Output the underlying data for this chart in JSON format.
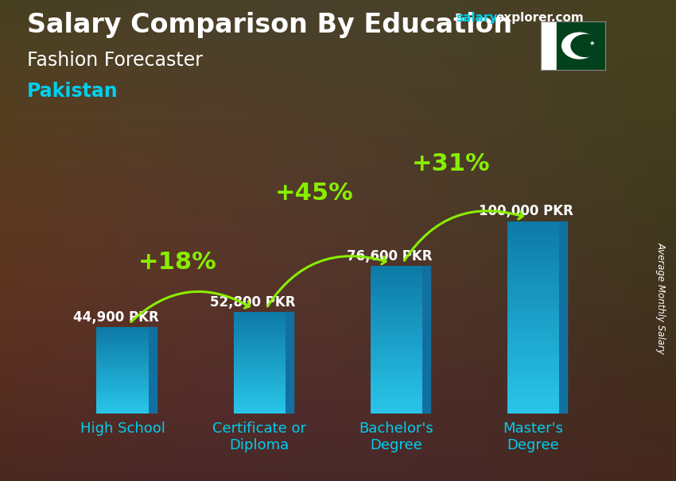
{
  "title_main": "Salary Comparison By Education",
  "title_sub": "Fashion Forecaster",
  "title_country": "Pakistan",
  "ylabel": "Average Monthly Salary",
  "categories": [
    "High School",
    "Certificate or\nDiploma",
    "Bachelor's\nDegree",
    "Master's\nDegree"
  ],
  "values": [
    44900,
    52800,
    76600,
    100000
  ],
  "labels": [
    "44,900 PKR",
    "52,800 PKR",
    "76,600 PKR",
    "100,000 PKR"
  ],
  "pct_changes": [
    "+18%",
    "+45%",
    "+31%"
  ],
  "bar_color_main": "#29c4e8",
  "bar_color_side": "#1580a8",
  "bar_color_top": "#55ddf5",
  "bg_color": "#6b5040",
  "text_color_white": "#ffffff",
  "text_color_cyan": "#00cfef",
  "text_color_green": "#88ee00",
  "brand_color_salary": "#00cfef",
  "brand_color_rest": "#ffffff",
  "title_fontsize": 24,
  "sub_fontsize": 17,
  "country_fontsize": 17,
  "label_fontsize": 12,
  "pct_fontsize": 22,
  "tick_fontsize": 13,
  "ylim": [
    0,
    130000
  ]
}
